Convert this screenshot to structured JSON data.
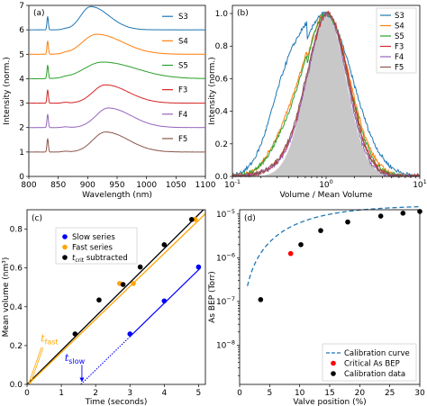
{
  "chart_data": [
    {
      "panel": "(a)",
      "type": "line",
      "xlabel": "Wavelength (nm)",
      "ylabel": "Intensity (norm.)",
      "xlim": [
        800,
        1100
      ],
      "ylim": [
        0,
        7
      ],
      "xticks": [
        800,
        850,
        900,
        950,
        1000,
        1050,
        1100
      ],
      "yticks": [
        0,
        1,
        2,
        3,
        4,
        5,
        6,
        7
      ],
      "legend_placement": "right, each label beside its trace",
      "series": [
        {
          "name": "S3",
          "color": "#1f77b4",
          "offset": 6,
          "peak_x": 905,
          "peak_h": 0.95,
          "width": 24
        },
        {
          "name": "S4",
          "color": "#ff7f0e",
          "offset": 5,
          "peak_x": 915,
          "peak_h": 0.82,
          "width": 34
        },
        {
          "name": "S5",
          "color": "#2ca02c",
          "offset": 4,
          "peak_x": 925,
          "peak_h": 0.68,
          "width": 44
        },
        {
          "name": "F3",
          "color": "#d62728",
          "offset": 3,
          "peak_x": 930,
          "peak_h": 0.75,
          "width": 30
        },
        {
          "name": "F4",
          "color": "#9467bd",
          "offset": 2,
          "peak_x": 935,
          "peak_h": 0.8,
          "width": 30
        },
        {
          "name": "F5",
          "color": "#8c564b",
          "offset": 1,
          "peak_x": 930,
          "peak_h": 0.82,
          "width": 30
        }
      ],
      "laser_line_x": 832
    },
    {
      "panel": "(b)",
      "type": "line",
      "xlabel": "Volume / Mean Volume",
      "ylabel": "Intensity (norm.)",
      "xscale": "log",
      "xlim": [
        0.1,
        10
      ],
      "ylim": [
        0,
        1.05
      ],
      "xticks": [
        "10^-1",
        "10^0",
        "10^1"
      ],
      "yticks": [
        0.0,
        0.2,
        0.4,
        0.6,
        0.8,
        1.0
      ],
      "legend_placement": "top-right",
      "filled_reference": {
        "color": "#c8c8c8"
      },
      "series": [
        {
          "name": "S3",
          "color": "#1f77b4"
        },
        {
          "name": "S4",
          "color": "#ff7f0e"
        },
        {
          "name": "S5",
          "color": "#2ca02c"
        },
        {
          "name": "F3",
          "color": "#d62728"
        },
        {
          "name": "F4",
          "color": "#9467bd"
        },
        {
          "name": "F5",
          "color": "#8c564b"
        }
      ]
    },
    {
      "panel": "(c)",
      "type": "scatter",
      "xlabel": "Time (seconds)",
      "ylabel": "Mean volume (nm³)",
      "xlim": [
        0,
        5.2
      ],
      "ylim": [
        0,
        0.9
      ],
      "xticks": [
        0,
        1,
        2,
        3,
        4,
        5
      ],
      "yticks": [
        0.0,
        0.2,
        0.4,
        0.6,
        0.8
      ],
      "legend_placement": "top-left",
      "series": [
        {
          "name": "Slow series",
          "color": "#0000ff",
          "x": [
            3,
            4,
            5
          ],
          "y": [
            0.26,
            0.43,
            0.605
          ]
        },
        {
          "name": "Fast series",
          "color": "#ffa500",
          "x": [
            2.7,
            3.1,
            4.9
          ],
          "y": [
            0.52,
            0.52,
            0.85
          ]
        },
        {
          "name": "t_crit subtracted",
          "label_main": "t",
          "label_sub": "crit",
          "label_rest": " subtracted",
          "color": "#000000",
          "x": [
            1.4,
            2.1,
            2.8,
            3.3,
            4.0,
            4.8
          ],
          "y": [
            0.26,
            0.435,
            0.515,
            0.605,
            0.72,
            0.85
          ]
        }
      ],
      "fits": [
        {
          "color": "#000000",
          "slope": 0.175,
          "intercept": 0.0
        },
        {
          "color": "#ffa500",
          "slope": 0.17,
          "intercept": -0.005
        },
        {
          "color": "#0000ff",
          "slope": 0.172,
          "intercept": -0.27,
          "solid_from": 3
        }
      ],
      "annotations": [
        {
          "main": "t",
          "sub": "fast",
          "color": "#ffa500",
          "arrow_x": 0.05
        },
        {
          "main": "t",
          "sub": "slow",
          "color": "#0000ff",
          "arrow_x": 1.6
        }
      ]
    },
    {
      "panel": "(d)",
      "type": "scatter",
      "xlabel": "Valve position (%)",
      "ylabel": "As BEP (Torr)",
      "yscale": "log",
      "xlim": [
        0,
        30
      ],
      "ylim_log": [
        -8.9,
        -4.9
      ],
      "xticks": [
        0,
        5,
        10,
        15,
        20,
        25,
        30
      ],
      "ytick_exponents": [
        -8,
        -7,
        -6,
        -5
      ],
      "legend_placement": "bottom-right",
      "curve": {
        "name": "Calibration curve",
        "color": "#1f77b4"
      },
      "series": [
        {
          "name": "Critical As BEP",
          "color": "#ff0000",
          "x": [
            8.5
          ],
          "y": [
            1.25e-06
          ]
        },
        {
          "name": "Calibration data",
          "color": "#000000",
          "x": [
            3.5,
            10.2,
            13.5,
            18.0,
            23.5,
            27.2,
            30.0
          ],
          "y": [
            1.1e-07,
            2e-06,
            4.2e-06,
            6.6e-06,
            9e-06,
            1.05e-05,
            1.15e-05
          ]
        }
      ]
    }
  ]
}
